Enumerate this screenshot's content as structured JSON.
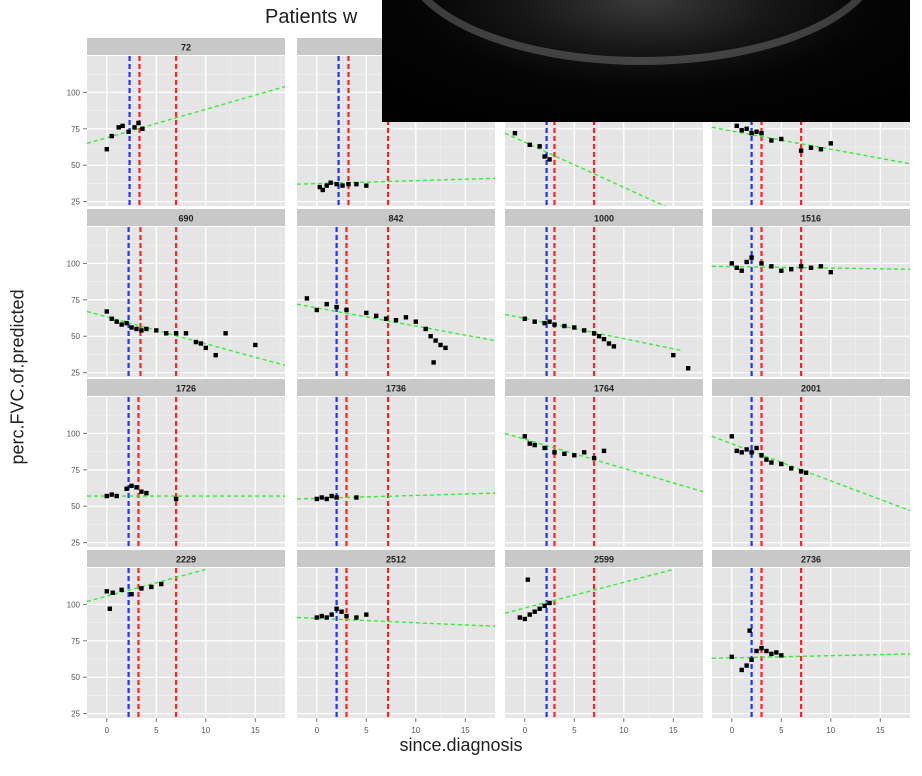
{
  "chart_data": {
    "type": "scatter",
    "title": "Patients w",
    "xlabel": "since.diagnosis",
    "ylabel": "perc.FVC.of.predicted",
    "xlim": [
      -2,
      18
    ],
    "ylim": [
      22,
      125
    ],
    "x_ticks": [
      0,
      5,
      10,
      15
    ],
    "y_ticks": [
      25,
      50,
      75,
      100
    ],
    "grid": true,
    "colors": {
      "points": "#000000",
      "trend": "#33ee33",
      "blue_line": "#2233ff",
      "red_line": "#ff2222",
      "panel_bg": "#e5e5e5",
      "strip_bg": "#c8c8c8"
    },
    "panels": [
      {
        "id": "72",
        "vlines": {
          "blue": 2.3,
          "red": [
            3.3,
            7.0
          ]
        },
        "trend": [
          [
            -2,
            65
          ],
          [
            18,
            104
          ]
        ],
        "points": [
          [
            0,
            61
          ],
          [
            0.5,
            70
          ],
          [
            1.2,
            76
          ],
          [
            1.6,
            77
          ],
          [
            2.2,
            73
          ],
          [
            2.8,
            76
          ],
          [
            3.2,
            79
          ],
          [
            3.6,
            75
          ]
        ]
      },
      {
        "id": "",
        "vlines": {
          "blue": 2.2,
          "red": [
            3.2,
            7.2
          ]
        },
        "trend": [
          [
            -2,
            37
          ],
          [
            18,
            41
          ]
        ],
        "points": [
          [
            0.3,
            35
          ],
          [
            0.6,
            33
          ],
          [
            1,
            36
          ],
          [
            1.4,
            38
          ],
          [
            2,
            37
          ],
          [
            2.6,
            36
          ],
          [
            3.2,
            37
          ],
          [
            4,
            37
          ],
          [
            5,
            36
          ]
        ]
      },
      {
        "id": "",
        "vlines": {
          "blue": 2.2,
          "red": [
            3.0,
            7.0
          ]
        },
        "trend": [
          [
            -2,
            72
          ],
          [
            18,
            10
          ]
        ],
        "points": [
          [
            -1,
            72
          ],
          [
            0.5,
            64
          ],
          [
            1.5,
            63
          ],
          [
            2,
            56
          ],
          [
            2.5,
            54
          ]
        ]
      },
      {
        "id": "",
        "vlines": {
          "blue": 2.0,
          "red": [
            3.0,
            7.0
          ]
        },
        "trend": [
          [
            -2,
            76
          ],
          [
            18,
            51
          ]
        ],
        "points": [
          [
            0.5,
            77
          ],
          [
            1,
            74
          ],
          [
            1.5,
            75
          ],
          [
            2,
            72
          ],
          [
            2.5,
            73
          ],
          [
            3,
            72
          ],
          [
            4,
            67
          ],
          [
            5,
            68
          ],
          [
            7,
            60
          ],
          [
            8,
            62
          ],
          [
            9,
            61
          ],
          [
            10,
            65
          ]
        ]
      },
      {
        "id": "690",
        "vlines": {
          "blue": 2.2,
          "red": [
            3.4,
            7.0
          ]
        },
        "trend": [
          [
            -2,
            67
          ],
          [
            18,
            30
          ]
        ],
        "points": [
          [
            0,
            67
          ],
          [
            0.5,
            62
          ],
          [
            1,
            60
          ],
          [
            1.5,
            58
          ],
          [
            2,
            59
          ],
          [
            2.5,
            56
          ],
          [
            3,
            55
          ],
          [
            3.5,
            54
          ],
          [
            4,
            55
          ],
          [
            5,
            54
          ],
          [
            6,
            52
          ],
          [
            7,
            52
          ],
          [
            8,
            52
          ],
          [
            9,
            46
          ],
          [
            9.5,
            45
          ],
          [
            10,
            42
          ],
          [
            11,
            37
          ],
          [
            12,
            52
          ],
          [
            15,
            44
          ]
        ]
      },
      {
        "id": "842",
        "vlines": {
          "blue": 2.0,
          "red": [
            3.0,
            7.2
          ]
        },
        "trend": [
          [
            -2,
            72
          ],
          [
            18,
            47
          ]
        ],
        "points": [
          [
            -1,
            76
          ],
          [
            0,
            68
          ],
          [
            1,
            72
          ],
          [
            2,
            70
          ],
          [
            3,
            68
          ],
          [
            5,
            66
          ],
          [
            6,
            64
          ],
          [
            7,
            62
          ],
          [
            8,
            61
          ],
          [
            9,
            63
          ],
          [
            10,
            60
          ],
          [
            11,
            55
          ],
          [
            11.5,
            50
          ],
          [
            12,
            47
          ],
          [
            12.5,
            44
          ],
          [
            13,
            42
          ],
          [
            11.8,
            32
          ]
        ]
      },
      {
        "id": "1000",
        "vlines": {
          "blue": 2.2,
          "red": [
            3.0,
            7.0
          ]
        },
        "trend": [
          [
            -2,
            65
          ],
          [
            16,
            40
          ]
        ],
        "points": [
          [
            0,
            62
          ],
          [
            1,
            60
          ],
          [
            2,
            59
          ],
          [
            2.5,
            60
          ],
          [
            3,
            58
          ],
          [
            4,
            57
          ],
          [
            5,
            56
          ],
          [
            6,
            54
          ],
          [
            7,
            52
          ],
          [
            7.5,
            50
          ],
          [
            8,
            48
          ],
          [
            8.5,
            45
          ],
          [
            9,
            43
          ],
          [
            15,
            37
          ],
          [
            16.5,
            28
          ]
        ]
      },
      {
        "id": "1516",
        "vlines": {
          "blue": 2.0,
          "red": [
            3.0,
            7.0
          ]
        },
        "trend": [
          [
            -2,
            98
          ],
          [
            18,
            96
          ]
        ],
        "points": [
          [
            0,
            100
          ],
          [
            0.5,
            97
          ],
          [
            1,
            95
          ],
          [
            1.5,
            101
          ],
          [
            2,
            104
          ],
          [
            3,
            100
          ],
          [
            4,
            98
          ],
          [
            5,
            95
          ],
          [
            6,
            96
          ],
          [
            7,
            98
          ],
          [
            8,
            97
          ],
          [
            9,
            98
          ],
          [
            10,
            94
          ]
        ]
      },
      {
        "id": "1726",
        "vlines": {
          "blue": 2.2,
          "red": [
            3.2,
            7.0
          ]
        },
        "trend": [
          [
            -2,
            57
          ],
          [
            18,
            57
          ]
        ],
        "points": [
          [
            0,
            57
          ],
          [
            0.5,
            58
          ],
          [
            1,
            57
          ],
          [
            2,
            62
          ],
          [
            2.5,
            64
          ],
          [
            3,
            63
          ],
          [
            3.5,
            60
          ],
          [
            4,
            59
          ],
          [
            7,
            55
          ]
        ]
      },
      {
        "id": "1736",
        "vlines": {
          "blue": 2.0,
          "red": [
            3.0,
            7.2
          ]
        },
        "trend": [
          [
            -2,
            55
          ],
          [
            18,
            59
          ]
        ],
        "points": [
          [
            0,
            55
          ],
          [
            0.5,
            56
          ],
          [
            1,
            55
          ],
          [
            1.5,
            57
          ],
          [
            2,
            56
          ],
          [
            4,
            56
          ]
        ]
      },
      {
        "id": "1764",
        "vlines": {
          "blue": 2.2,
          "red": [
            3.0,
            7.0
          ]
        },
        "trend": [
          [
            -2,
            100
          ],
          [
            18,
            60
          ]
        ],
        "points": [
          [
            0,
            98
          ],
          [
            0.5,
            93
          ],
          [
            1,
            92
          ],
          [
            2,
            90
          ],
          [
            3,
            87
          ],
          [
            4,
            86
          ],
          [
            5,
            85
          ],
          [
            6,
            87
          ],
          [
            7,
            83
          ],
          [
            8,
            88
          ]
        ]
      },
      {
        "id": "2001",
        "vlines": {
          "blue": 2.0,
          "red": [
            3.0,
            7.0
          ]
        },
        "trend": [
          [
            -2,
            98
          ],
          [
            18,
            47
          ]
        ],
        "points": [
          [
            0,
            98
          ],
          [
            0.5,
            88
          ],
          [
            1,
            87
          ],
          [
            1.5,
            89
          ],
          [
            2,
            87
          ],
          [
            2.5,
            90
          ],
          [
            3,
            85
          ],
          [
            3.5,
            82
          ],
          [
            4,
            80
          ],
          [
            5,
            79
          ],
          [
            6,
            76
          ],
          [
            7,
            74
          ],
          [
            7.5,
            73
          ]
        ]
      },
      {
        "id": "2229",
        "vlines": {
          "blue": 2.2,
          "red": [
            3.2,
            7.0
          ]
        },
        "trend": [
          [
            -2,
            102
          ],
          [
            10,
            124
          ]
        ],
        "points": [
          [
            0,
            109
          ],
          [
            0.3,
            97
          ],
          [
            0.6,
            108
          ],
          [
            1.5,
            110
          ],
          [
            2.5,
            107
          ],
          [
            3.5,
            111
          ],
          [
            4.5,
            112
          ],
          [
            5.5,
            114
          ]
        ]
      },
      {
        "id": "2512",
        "vlines": {
          "blue": 2.0,
          "red": [
            3.0,
            7.2
          ]
        },
        "trend": [
          [
            -2,
            91
          ],
          [
            18,
            85
          ]
        ],
        "points": [
          [
            0,
            91
          ],
          [
            0.5,
            92
          ],
          [
            1,
            91
          ],
          [
            1.5,
            93
          ],
          [
            2,
            97
          ],
          [
            2.5,
            95
          ],
          [
            3,
            92
          ],
          [
            4,
            91
          ],
          [
            5,
            93
          ]
        ]
      },
      {
        "id": "2599",
        "vlines": {
          "blue": 2.2,
          "red": [
            3.0,
            7.0
          ]
        },
        "trend": [
          [
            -2,
            94
          ],
          [
            15,
            124
          ]
        ],
        "points": [
          [
            -0.5,
            91
          ],
          [
            0,
            90
          ],
          [
            0.5,
            93
          ],
          [
            1,
            95
          ],
          [
            1.5,
            97
          ],
          [
            2,
            99
          ],
          [
            2.5,
            101
          ],
          [
            0.3,
            117
          ]
        ]
      },
      {
        "id": "2736",
        "vlines": {
          "blue": 2.0,
          "red": [
            3.0,
            7.0
          ]
        },
        "trend": [
          [
            -2,
            63
          ],
          [
            18,
            66
          ]
        ],
        "points": [
          [
            0,
            64
          ],
          [
            1,
            55
          ],
          [
            1.5,
            58
          ],
          [
            2,
            62
          ],
          [
            2.5,
            68
          ],
          [
            3,
            70
          ],
          [
            3.5,
            68
          ],
          [
            4,
            66
          ],
          [
            4.5,
            67
          ],
          [
            5,
            65
          ],
          [
            1.8,
            82
          ]
        ]
      }
    ]
  }
}
